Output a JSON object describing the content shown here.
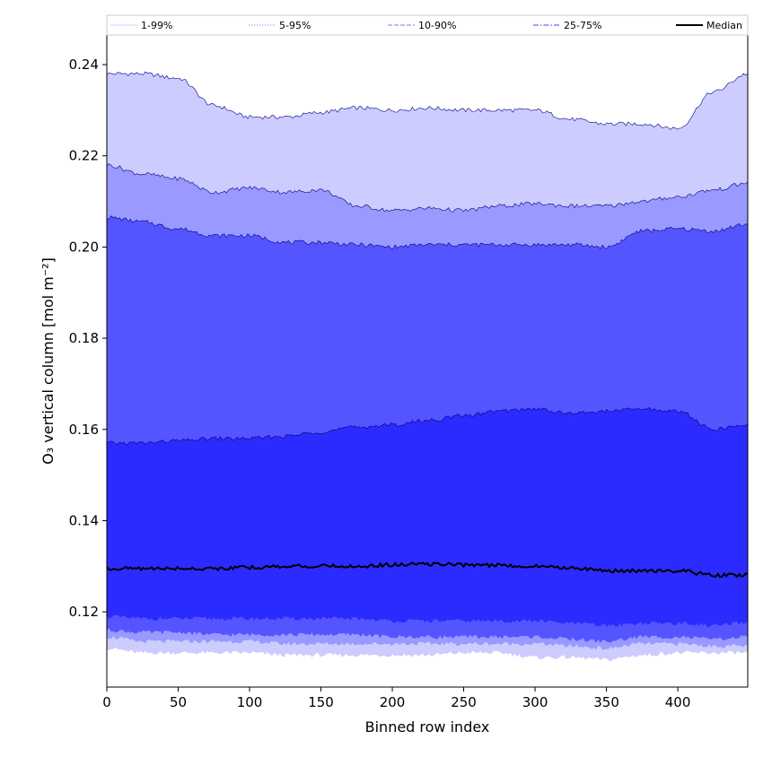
{
  "chart_data": {
    "type": "area",
    "title": "",
    "xlabel": "Binned row index",
    "ylabel": "O₃ vertical column [mol m⁻²]",
    "xlim": [
      0,
      449
    ],
    "ylim": [
      0.1035,
      0.2465
    ],
    "x_ticks": [
      0,
      50,
      100,
      150,
      200,
      250,
      300,
      350,
      400
    ],
    "y_ticks": [
      0.12,
      0.14,
      0.16,
      0.18,
      0.2,
      0.22,
      0.24
    ],
    "y_tick_labels": [
      "0.12",
      "0.14",
      "0.16",
      "0.18",
      "0.20",
      "0.22",
      "0.24"
    ],
    "grid": false,
    "legend_placement": "top, above plot area",
    "x": [
      0,
      25,
      50,
      75,
      100,
      125,
      150,
      175,
      200,
      225,
      250,
      275,
      300,
      325,
      350,
      375,
      400,
      425,
      449
    ],
    "bands": [
      {
        "name": "1-99%",
        "color": "#ccccff",
        "upper": [
          0.238,
          0.238,
          0.237,
          0.231,
          0.2285,
          0.2285,
          0.2295,
          0.2305,
          0.23,
          0.2305,
          0.23,
          0.23,
          0.23,
          0.228,
          0.227,
          0.227,
          0.226,
          0.234,
          0.238
        ],
        "lower": [
          0.112,
          0.111,
          0.111,
          0.111,
          0.111,
          0.1105,
          0.1105,
          0.1105,
          0.1105,
          0.1105,
          0.111,
          0.111,
          0.11,
          0.11,
          0.1095,
          0.1105,
          0.111,
          0.111,
          0.111
        ]
      },
      {
        "name": "5-95%",
        "color": "#9999ff",
        "upper": [
          0.218,
          0.216,
          0.215,
          0.212,
          0.213,
          0.212,
          0.2125,
          0.209,
          0.208,
          0.2085,
          0.208,
          0.209,
          0.2095,
          0.209,
          0.209,
          0.21,
          0.211,
          0.2125,
          0.214
        ],
        "lower": [
          0.1145,
          0.1135,
          0.1135,
          0.1135,
          0.1135,
          0.113,
          0.113,
          0.113,
          0.113,
          0.113,
          0.113,
          0.113,
          0.113,
          0.1125,
          0.112,
          0.113,
          0.113,
          0.1125,
          0.1125
        ]
      },
      {
        "name": "10-90%",
        "color": "#5555ff",
        "upper": [
          0.2065,
          0.2055,
          0.204,
          0.2025,
          0.2025,
          0.201,
          0.201,
          0.2005,
          0.2,
          0.2005,
          0.2005,
          0.2005,
          0.2005,
          0.2005,
          0.2,
          0.2035,
          0.204,
          0.2035,
          0.205
        ],
        "lower": [
          0.116,
          0.1155,
          0.1155,
          0.115,
          0.115,
          0.115,
          0.115,
          0.115,
          0.1145,
          0.1145,
          0.1145,
          0.1145,
          0.1145,
          0.114,
          0.1135,
          0.1145,
          0.1145,
          0.114,
          0.1145
        ]
      },
      {
        "name": "25-75%",
        "color": "#2b2bff",
        "upper": [
          0.157,
          0.157,
          0.1575,
          0.158,
          0.158,
          0.1585,
          0.1595,
          0.1605,
          0.161,
          0.162,
          0.163,
          0.164,
          0.1645,
          0.1635,
          0.164,
          0.1645,
          0.164,
          0.16,
          0.161
        ],
        "lower": [
          0.119,
          0.1185,
          0.1185,
          0.1185,
          0.1185,
          0.1185,
          0.1185,
          0.1185,
          0.118,
          0.118,
          0.118,
          0.118,
          0.118,
          0.1175,
          0.117,
          0.1175,
          0.1175,
          0.117,
          0.1175
        ]
      }
    ],
    "median": {
      "name": "Median",
      "color": "#000000",
      "values": [
        0.1295,
        0.1295,
        0.1295,
        0.1295,
        0.1297,
        0.13,
        0.13,
        0.13,
        0.1303,
        0.1305,
        0.1303,
        0.1302,
        0.13,
        0.1297,
        0.129,
        0.129,
        0.129,
        0.128,
        0.128
      ]
    },
    "legend": [
      {
        "label": "1-99%",
        "color": "#ccccff",
        "style": "solid"
      },
      {
        "label": "5-95%",
        "color": "#9999ff",
        "style": "dotted"
      },
      {
        "label": "10-90%",
        "color": "#7777ff",
        "style": "dashed"
      },
      {
        "label": "25-75%",
        "color": "#4040ff",
        "style": "dashdot"
      },
      {
        "label": "Median",
        "color": "#000000",
        "style": "solid-thick"
      }
    ]
  }
}
